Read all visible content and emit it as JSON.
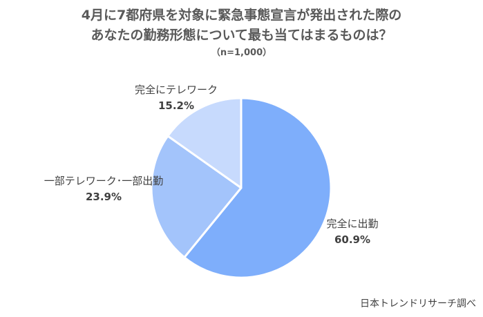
{
  "chart_data": {
    "type": "pie",
    "title": "4月に7都府県を対象に緊急事態宣言が発出された際の",
    "title_line2": "あなたの勤務形態について最も当てはまるものは？",
    "subtitle": "（n=1,000）",
    "slices": [
      {
        "label": "完全に出勤",
        "value": 60.9,
        "value_label": "60.9%",
        "color": "#7eaefb"
      },
      {
        "label": "一部テレワーク･一部出勤",
        "value": 23.9,
        "value_label": "23.9%",
        "color": "#a3c4fb"
      },
      {
        "label": "完全にテレワーク",
        "value": 15.2,
        "value_label": "15.2%",
        "color": "#c7dafd"
      }
    ],
    "start": "12 o'clock",
    "direction": "clockwise",
    "source": "日本トレンドリサーチ調べ"
  }
}
